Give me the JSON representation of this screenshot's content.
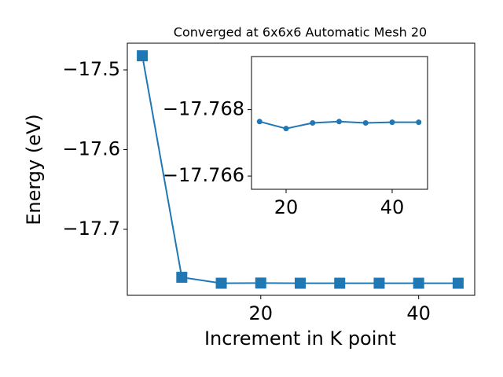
{
  "chart_data": [
    {
      "type": "line",
      "title": "Converged at 6x6x6 Automatic Mesh 20",
      "x_label": "Increment in K point",
      "y_label": "Energy (eV)",
      "x": [
        5,
        10,
        15,
        20,
        25,
        30,
        35,
        40,
        45
      ],
      "series": [
        {
          "name": "Energy",
          "color": "#1f77b4",
          "marker": "square",
          "values": [
            -17.4823,
            -17.7602,
            -17.7676,
            -17.7674,
            -17.7676,
            -17.7676,
            -17.7676,
            -17.7676,
            -17.7676
          ]
        }
      ],
      "xlim": [
        3.1,
        47.1
      ],
      "ylim": [
        -17.7828,
        -17.4665
      ],
      "xticks": [
        20,
        40
      ],
      "yticks": [
        {
          "value": -17.5,
          "label": "−17.5"
        },
        {
          "value": -17.6,
          "label": "−17.6"
        },
        {
          "value": -17.7,
          "label": "−17.7"
        }
      ]
    },
    {
      "type": "line",
      "x": [
        15,
        20,
        25,
        30,
        35,
        40,
        45
      ],
      "series": [
        {
          "name": "Energy",
          "color": "#1f77b4",
          "marker": "circle",
          "values": [
            -17.76764,
            -17.76743,
            -17.7676,
            -17.76764,
            -17.7676,
            -17.76762,
            -17.76762
          ]
        }
      ],
      "xlim": [
        13.48,
        46.67
      ],
      "ylim": [
        -17.7656,
        -17.7696
      ],
      "xticks": [
        20,
        40
      ],
      "yticks": [
        {
          "value": -17.768,
          "label": "−17.768"
        },
        {
          "value": -17.766,
          "label": "−17.766"
        }
      ]
    }
  ]
}
